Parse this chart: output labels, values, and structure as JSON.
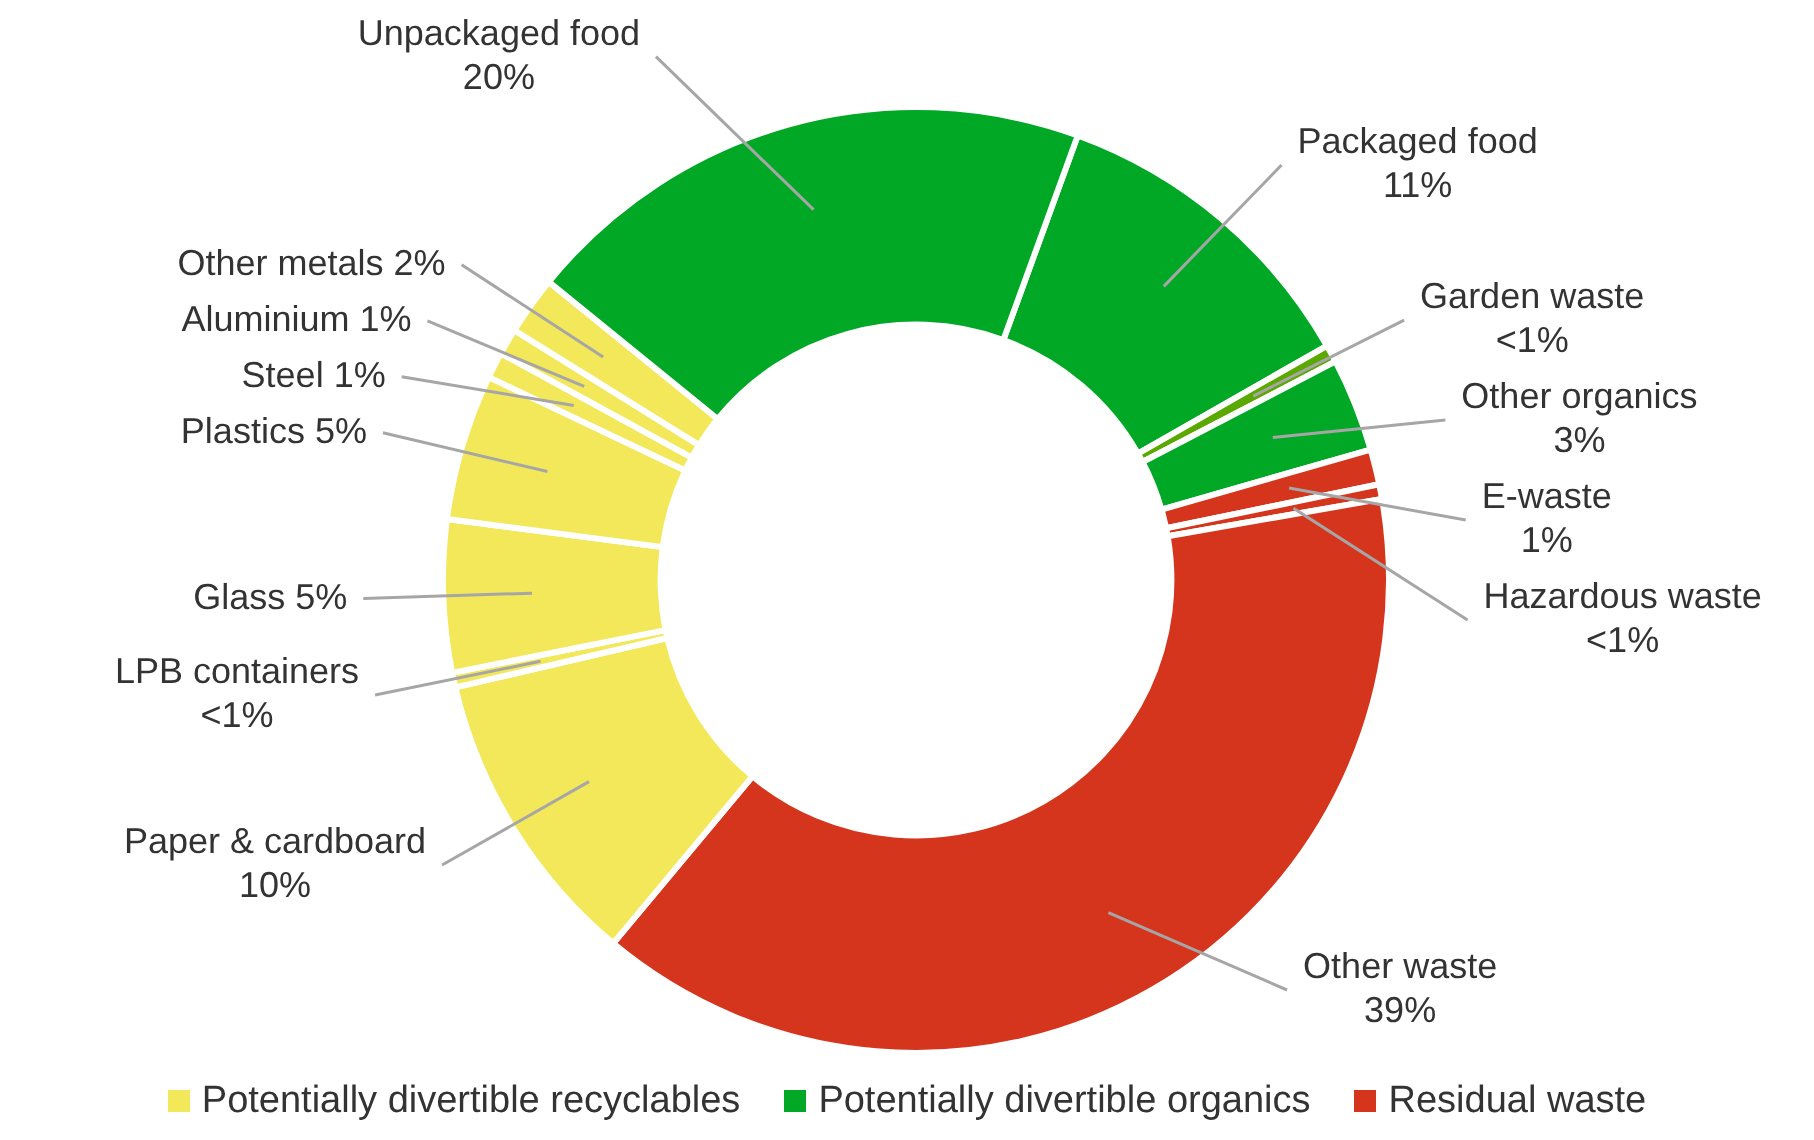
{
  "chart_data": {
    "type": "donut",
    "categories": [
      "Packaged food",
      "Garden waste",
      "Other organics",
      "E-waste",
      "Hazardous waste",
      "Other waste",
      "Paper & cardboard",
      "LPB containers",
      "Glass",
      "Plastics",
      "Steel",
      "Aluminium",
      "Other metals",
      "Unpackaged food"
    ],
    "values": [
      11.2,
      0.6,
      3.2,
      1.2,
      0.5,
      38.8,
      10.3,
      0.5,
      5.2,
      5.0,
      0.9,
      0.9,
      2.0,
      19.7
    ],
    "colors": [
      "#00a826",
      "#5aa800",
      "#00a826",
      "#d4351c",
      "#d4351c",
      "#d4351c",
      "#f2e85a",
      "#f2e85a",
      "#f2e85a",
      "#f2e85a",
      "#f2e85a",
      "#f2e85a",
      "#f2e85a",
      "#00a826"
    ],
    "value_labels": [
      "11%",
      "<1%",
      "3%",
      "1%",
      "<1%",
      "39%",
      "10%",
      "<1%",
      "5%",
      "5%",
      "1%",
      "1%",
      "2%",
      "20%"
    ],
    "annotations": [
      "Potentially divertible recyclables",
      "Potentially divertible organics",
      "Residual waste"
    ]
  }
}
